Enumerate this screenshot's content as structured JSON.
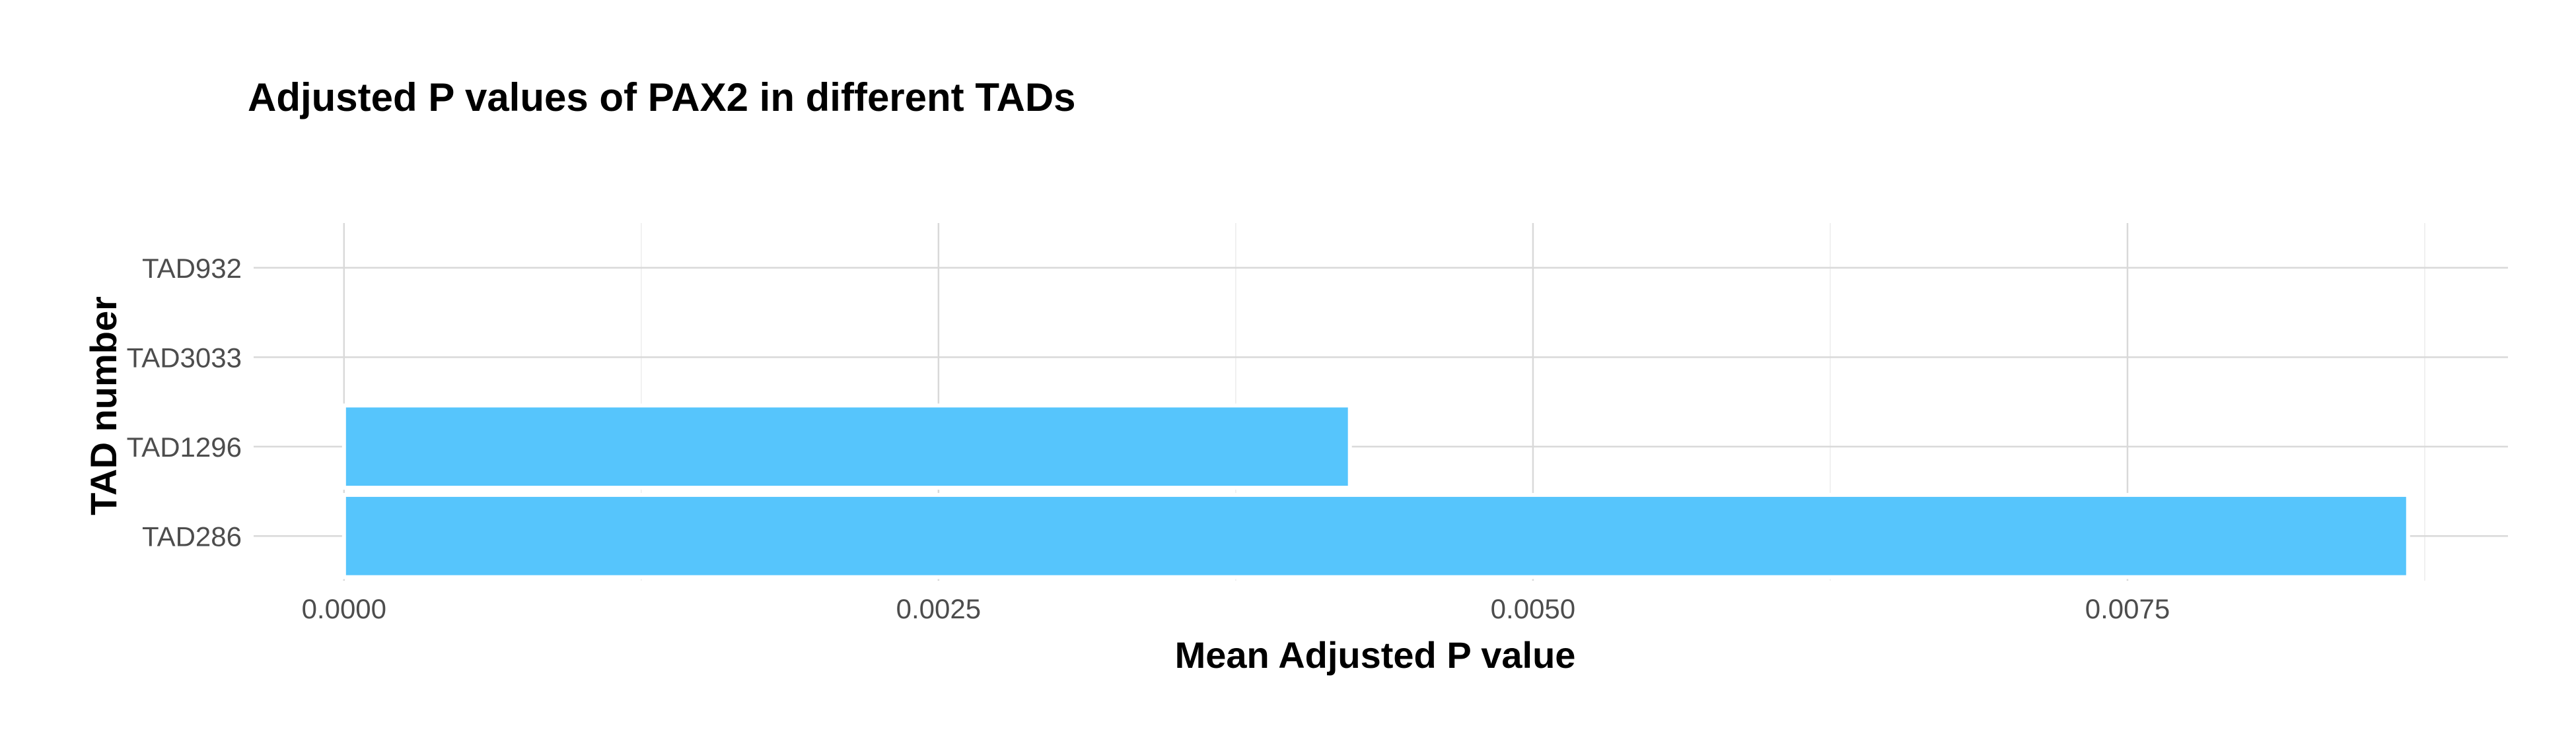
{
  "chart_data": {
    "type": "bar",
    "orientation": "horizontal",
    "title": "Adjusted P values of PAX2 in different TADs",
    "xlabel": "Mean Adjusted P value",
    "ylabel": "TAD number",
    "categories": [
      "TAD932",
      "TAD3033",
      "TAD1296",
      "TAD286"
    ],
    "values": [
      0,
      0,
      0.00423,
      0.00868
    ],
    "xlim": [
      -0.00038,
      0.0091
    ],
    "x_ticks": [
      0,
      0.0025,
      0.005,
      0.0075
    ],
    "x_tick_labels": [
      "0.0000",
      "0.0025",
      "0.0050",
      "0.0075"
    ],
    "x_minor_ticks": [
      0.00125,
      0.00375,
      0.00625,
      0.00875
    ],
    "grid": true,
    "legend": "none",
    "bar_color": "#56c5fc"
  }
}
